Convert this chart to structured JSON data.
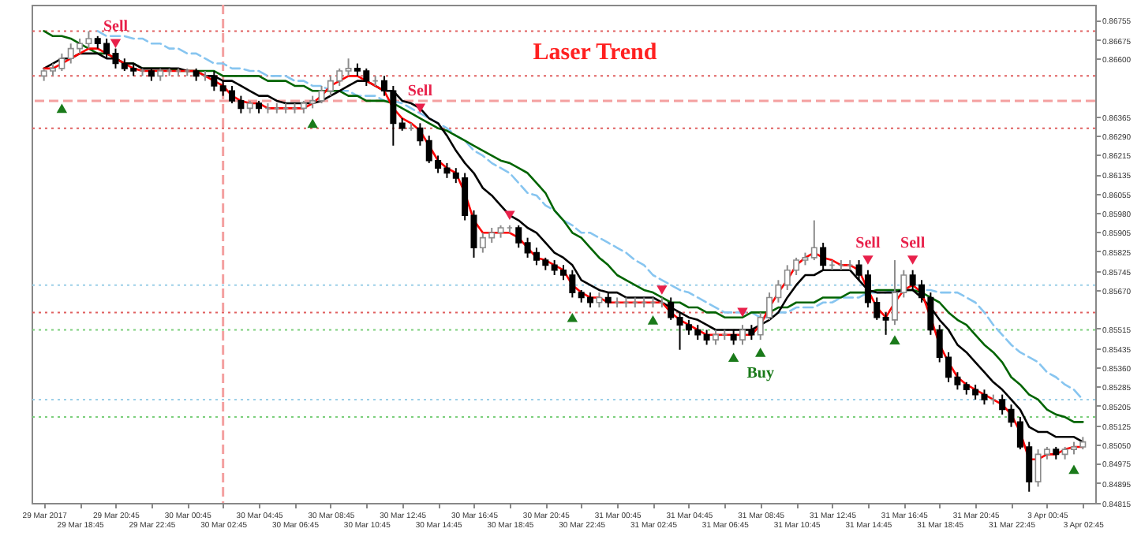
{
  "chart_data": {
    "type": "candlestick",
    "title": "Laser Trend",
    "ylim": [
      0.84815,
      0.86816
    ],
    "yticks": [
      0.86755,
      0.86675,
      {
        "value": 0.866,
        "label": "0.86600"
      },
      0.86365,
      {
        "value": 0.8629,
        "label": "0.86290"
      },
      0.86215,
      0.86135,
      0.86055,
      {
        "value": 0.8598,
        "label": "0.85980"
      },
      0.85905,
      0.85825,
      0.85745,
      {
        "value": 0.8567,
        "label": "0.85670"
      },
      0.85515,
      0.85435,
      {
        "value": 0.8536,
        "label": "0.85360"
      },
      0.85285,
      0.85205,
      0.85125,
      {
        "value": 0.8505,
        "label": "0.85050"
      },
      0.84975,
      0.84895,
      0.84815
    ],
    "categories": [
      "29 Mar 2017",
      null,
      null,
      null,
      "29 Mar 18:45",
      null,
      null,
      null,
      "29 Mar 20:45",
      null,
      null,
      null,
      "29 Mar 22:45",
      null,
      null,
      null,
      "30 Mar 00:45",
      null,
      null,
      null,
      "30 Mar 02:45",
      null,
      null,
      null,
      "30 Mar 04:45",
      null,
      null,
      null,
      "30 Mar 06:45",
      null,
      null,
      null,
      "30 Mar 08:45",
      null,
      null,
      null,
      "30 Mar 10:45",
      null,
      null,
      null,
      "30 Mar 12:45",
      null,
      null,
      null,
      "30 Mar 14:45",
      null,
      null,
      null,
      "30 Mar 16:45",
      null,
      null,
      null,
      "30 Mar 18:45",
      null,
      null,
      null,
      "30 Mar 20:45",
      null,
      null,
      null,
      "30 Mar 22:45",
      null,
      null,
      null,
      "31 Mar 00:45",
      null,
      null,
      null,
      "31 Mar 02:45",
      null,
      null,
      null,
      "31 Mar 04:45",
      null,
      null,
      null,
      "31 Mar 06:45",
      null,
      null,
      null,
      "31 Mar 08:45",
      null,
      null,
      null,
      "31 Mar 10:45",
      null,
      null,
      null,
      "31 Mar 12:45",
      null,
      null,
      null,
      "31 Mar 14:45",
      null,
      null,
      null,
      "31 Mar 16:45",
      null,
      null,
      null,
      "31 Mar 18:45",
      null,
      null,
      null,
      "31 Mar 20:45",
      null,
      null,
      null,
      "31 Mar 22:45",
      null,
      null,
      null,
      "3 Apr 00:45",
      null,
      null,
      null,
      "3 Apr 02:45"
    ],
    "ohlc": [
      [
        0.8653,
        0.8656,
        0.8651,
        0.8655
      ],
      [
        0.8655,
        0.8658,
        0.8653,
        0.8656
      ],
      [
        0.8656,
        0.8662,
        0.8655,
        0.866
      ],
      [
        0.866,
        0.8666,
        0.8658,
        0.8664
      ],
      [
        0.8664,
        0.8668,
        0.8662,
        0.8666
      ],
      [
        0.8666,
        0.8671,
        0.8664,
        0.8668
      ],
      [
        0.8668,
        0.8669,
        0.8664,
        0.8666
      ],
      [
        0.8666,
        0.8668,
        0.866,
        0.8662
      ],
      [
        0.8662,
        0.8664,
        0.8656,
        0.8658
      ],
      [
        0.8658,
        0.866,
        0.8655,
        0.8656
      ],
      [
        0.8656,
        0.8658,
        0.8653,
        0.8655
      ],
      [
        0.8655,
        0.8656,
        0.8653,
        0.8655
      ],
      [
        0.8655,
        0.8656,
        0.8651,
        0.8653
      ],
      [
        0.8653,
        0.8656,
        0.8651,
        0.8655
      ],
      [
        0.8655,
        0.8656,
        0.8653,
        0.8655
      ],
      [
        0.8655,
        0.8656,
        0.8653,
        0.8655
      ],
      [
        0.8655,
        0.8656,
        0.8653,
        0.8655
      ],
      [
        0.8655,
        0.8656,
        0.8651,
        0.8653
      ],
      [
        0.8653,
        0.8655,
        0.8651,
        0.8653
      ],
      [
        0.8653,
        0.8655,
        0.8647,
        0.8649
      ],
      [
        0.8649,
        0.8651,
        0.8645,
        0.8647
      ],
      [
        0.8647,
        0.8649,
        0.8642,
        0.8643
      ],
      [
        0.8643,
        0.8645,
        0.8638,
        0.864
      ],
      [
        0.864,
        0.8643,
        0.8638,
        0.8642
      ],
      [
        0.8642,
        0.8643,
        0.8638,
        0.864
      ],
      [
        0.864,
        0.8642,
        0.8638,
        0.864
      ],
      [
        0.864,
        0.8642,
        0.8638,
        0.864
      ],
      [
        0.864,
        0.8642,
        0.8638,
        0.864
      ],
      [
        0.864,
        0.8642,
        0.8638,
        0.864
      ],
      [
        0.864,
        0.8643,
        0.8638,
        0.8642
      ],
      [
        0.8642,
        0.8645,
        0.864,
        0.8643
      ],
      [
        0.8643,
        0.8649,
        0.8642,
        0.8647
      ],
      [
        0.8647,
        0.8653,
        0.8645,
        0.8651
      ],
      [
        0.8651,
        0.8656,
        0.8649,
        0.8655
      ],
      [
        0.8655,
        0.866,
        0.8653,
        0.8656
      ],
      [
        0.8656,
        0.8658,
        0.8653,
        0.8655
      ],
      [
        0.8655,
        0.8656,
        0.8649,
        0.8651
      ],
      [
        0.8651,
        0.8653,
        0.8649,
        0.8651
      ],
      [
        0.8651,
        0.8653,
        0.8645,
        0.8647
      ],
      [
        0.8647,
        0.8649,
        0.8625,
        0.8634
      ],
      [
        0.8634,
        0.8636,
        0.8631,
        0.8632
      ],
      [
        0.8632,
        0.8634,
        0.8631,
        0.8632
      ],
      [
        0.8632,
        0.8634,
        0.8625,
        0.8627
      ],
      [
        0.8627,
        0.8629,
        0.8618,
        0.8619
      ],
      [
        0.8619,
        0.8621,
        0.8614,
        0.8616
      ],
      [
        0.8616,
        0.8618,
        0.8612,
        0.8614
      ],
      [
        0.8614,
        0.8616,
        0.861,
        0.8612
      ],
      [
        0.8612,
        0.8614,
        0.8595,
        0.8597
      ],
      [
        0.8597,
        0.8599,
        0.858,
        0.8584
      ],
      [
        0.8584,
        0.859,
        0.8582,
        0.8588
      ],
      [
        0.8588,
        0.8592,
        0.8586,
        0.859
      ],
      [
        0.859,
        0.8593,
        0.8588,
        0.8592
      ],
      [
        0.8592,
        0.8593,
        0.859,
        0.8592
      ],
      [
        0.8592,
        0.8593,
        0.8584,
        0.8586
      ],
      [
        0.8586,
        0.8588,
        0.858,
        0.8582
      ],
      [
        0.8582,
        0.8584,
        0.8577,
        0.8579
      ],
      [
        0.8579,
        0.858,
        0.8575,
        0.8577
      ],
      [
        0.8577,
        0.8579,
        0.8573,
        0.8575
      ],
      [
        0.8575,
        0.8577,
        0.8571,
        0.8573
      ],
      [
        0.8573,
        0.8575,
        0.8564,
        0.8566
      ],
      [
        0.8566,
        0.8567,
        0.8562,
        0.8564
      ],
      [
        0.8564,
        0.8566,
        0.856,
        0.8562
      ],
      [
        0.8562,
        0.8566,
        0.856,
        0.8564
      ],
      [
        0.8564,
        0.8566,
        0.856,
        0.8562
      ],
      [
        0.8562,
        0.8564,
        0.856,
        0.8562
      ],
      [
        0.8562,
        0.8564,
        0.856,
        0.8562
      ],
      [
        0.8562,
        0.8564,
        0.856,
        0.8562
      ],
      [
        0.8562,
        0.8564,
        0.856,
        0.8562
      ],
      [
        0.8562,
        0.8564,
        0.856,
        0.8562
      ],
      [
        0.8562,
        0.8564,
        0.856,
        0.8562
      ],
      [
        0.8562,
        0.8564,
        0.8555,
        0.8556
      ],
      [
        0.8556,
        0.8558,
        0.8543,
        0.8553
      ],
      [
        0.8553,
        0.8555,
        0.8549,
        0.8551
      ],
      [
        0.8551,
        0.8553,
        0.8547,
        0.8549
      ],
      [
        0.8549,
        0.8551,
        0.8545,
        0.8547
      ],
      [
        0.8547,
        0.8551,
        0.8545,
        0.8549
      ],
      [
        0.8549,
        0.8551,
        0.8547,
        0.8549
      ],
      [
        0.8549,
        0.8551,
        0.8545,
        0.8547
      ],
      [
        0.8547,
        0.8553,
        0.8545,
        0.8551
      ],
      [
        0.8551,
        0.8553,
        0.8547,
        0.8549
      ],
      [
        0.8549,
        0.8558,
        0.8547,
        0.8556
      ],
      [
        0.8556,
        0.8566,
        0.8555,
        0.8564
      ],
      [
        0.8564,
        0.8571,
        0.8562,
        0.8569
      ],
      [
        0.8569,
        0.8577,
        0.8567,
        0.8575
      ],
      [
        0.8575,
        0.858,
        0.8573,
        0.8579
      ],
      [
        0.8579,
        0.8582,
        0.8577,
        0.858
      ],
      [
        0.858,
        0.8595,
        0.8579,
        0.8584
      ],
      [
        0.8584,
        0.8586,
        0.8575,
        0.8577
      ],
      [
        0.8577,
        0.8579,
        0.8575,
        0.8577
      ],
      [
        0.8577,
        0.8579,
        0.8575,
        0.8577
      ],
      [
        0.8577,
        0.8579,
        0.8575,
        0.8577
      ],
      [
        0.8577,
        0.8579,
        0.8571,
        0.8573
      ],
      [
        0.8573,
        0.8575,
        0.856,
        0.8562
      ],
      [
        0.8562,
        0.8564,
        0.8555,
        0.8556
      ],
      [
        0.8556,
        0.8558,
        0.8549,
        0.8555
      ],
      [
        0.8555,
        0.8579,
        0.8553,
        0.8566
      ],
      [
        0.8566,
        0.8575,
        0.8564,
        0.8573
      ],
      [
        0.8573,
        0.8575,
        0.8567,
        0.8569
      ],
      [
        0.8569,
        0.8571,
        0.8562,
        0.8564
      ],
      [
        0.8564,
        0.8566,
        0.8549,
        0.8551
      ],
      [
        0.8551,
        0.8553,
        0.8538,
        0.854
      ],
      [
        0.854,
        0.8542,
        0.853,
        0.8532
      ],
      [
        0.8532,
        0.8534,
        0.8527,
        0.8529
      ],
      [
        0.8529,
        0.853,
        0.8525,
        0.8527
      ],
      [
        0.8527,
        0.8529,
        0.8523,
        0.8525
      ],
      [
        0.8525,
        0.8527,
        0.8521,
        0.8523
      ],
      [
        0.8523,
        0.8525,
        0.8521,
        0.8523
      ],
      [
        0.8523,
        0.8525,
        0.8517,
        0.8519
      ],
      [
        0.8519,
        0.8521,
        0.8512,
        0.8514
      ],
      [
        0.8514,
        0.8516,
        0.8503,
        0.8504
      ],
      [
        0.8504,
        0.8506,
        0.8486,
        0.849
      ],
      [
        0.849,
        0.8503,
        0.8488,
        0.8501
      ],
      [
        0.8501,
        0.8504,
        0.8499,
        0.8503
      ],
      [
        0.8503,
        0.8504,
        0.8499,
        0.8501
      ],
      [
        0.8501,
        0.8504,
        0.8499,
        0.8503
      ],
      [
        0.8503,
        0.8506,
        0.8501,
        0.8504
      ],
      [
        0.8504,
        0.8508,
        0.8503,
        0.8506
      ]
    ],
    "series": [
      {
        "type": "line",
        "color": "#87c5f0",
        "line_style": "dashed",
        "values": [
          null,
          null,
          null,
          null,
          null,
          null,
          0.8671,
          0.8669,
          0.8669,
          0.8669,
          0.8668,
          0.8668,
          0.8666,
          0.8666,
          0.8664,
          0.8664,
          0.8662,
          0.8662,
          0.866,
          0.8658,
          0.8658,
          0.8656,
          0.8656,
          0.8655,
          0.8655,
          0.8653,
          0.8653,
          0.8653,
          0.8651,
          0.8651,
          0.8649,
          0.8649,
          0.8647,
          0.8647,
          0.8647,
          0.8645,
          0.8645,
          0.8645,
          0.8643,
          0.8643,
          0.8642,
          0.864,
          0.8638,
          0.8636,
          0.8634,
          0.8632,
          0.8629,
          0.8627,
          0.8623,
          0.8621,
          0.8618,
          0.8616,
          0.8614,
          0.861,
          0.8606,
          0.8605,
          0.8601,
          0.8599,
          0.8595,
          0.8593,
          0.859,
          0.859,
          0.8588,
          0.8586,
          0.8584,
          0.8582,
          0.8579,
          0.8577,
          0.8573,
          0.8571,
          0.8569,
          0.8567,
          0.8566,
          0.8564,
          0.8562,
          0.856,
          0.8558,
          0.8558,
          0.8558,
          0.8558,
          0.8556,
          0.8556,
          0.8558,
          0.8558,
          0.856,
          0.856,
          0.856,
          0.8562,
          0.8562,
          0.8564,
          0.8564,
          0.8564,
          0.8566,
          0.8566,
          0.8566,
          0.8567,
          0.8567,
          0.8567,
          0.8567,
          0.8567,
          0.8566,
          0.8566,
          0.8566,
          0.8564,
          0.8562,
          0.8558,
          0.8553,
          0.8549,
          0.8545,
          0.8542,
          0.854,
          0.8538,
          0.8534,
          0.8532,
          0.8529,
          0.8527,
          0.8523
        ]
      },
      {
        "type": "line",
        "color": "#006400",
        "values": [
          0.8671,
          0.8669,
          0.8669,
          0.8668,
          0.8666,
          0.8664,
          0.8662,
          0.8662,
          0.866,
          0.8658,
          0.8658,
          0.8656,
          0.8656,
          0.8656,
          0.8656,
          0.8655,
          0.8655,
          0.8655,
          0.8655,
          0.8655,
          0.8653,
          0.8653,
          0.8653,
          0.8653,
          0.8653,
          0.8651,
          0.8651,
          0.8651,
          0.8649,
          0.8649,
          0.8647,
          0.8647,
          0.8647,
          0.8647,
          0.8645,
          0.8645,
          0.8643,
          0.8643,
          0.8643,
          0.8642,
          0.864,
          0.8638,
          0.8636,
          0.8634,
          0.8632,
          0.8631,
          0.8629,
          0.8627,
          0.8625,
          0.8623,
          0.8621,
          0.8619,
          0.8618,
          0.8616,
          0.8614,
          0.861,
          0.8606,
          0.8599,
          0.8595,
          0.859,
          0.8588,
          0.8584,
          0.858,
          0.8577,
          0.8573,
          0.8571,
          0.8569,
          0.8567,
          0.8566,
          0.8564,
          0.8562,
          0.8562,
          0.856,
          0.856,
          0.8558,
          0.8558,
          0.8556,
          0.8556,
          0.8556,
          0.8558,
          0.8558,
          0.8558,
          0.856,
          0.856,
          0.8562,
          0.8562,
          0.8562,
          0.8564,
          0.8564,
          0.8564,
          0.8566,
          0.8566,
          0.8566,
          0.8567,
          0.8567,
          0.8567,
          0.8567,
          0.8567,
          0.8566,
          0.8564,
          0.8562,
          0.8558,
          0.8555,
          0.8553,
          0.8549,
          0.8545,
          0.8542,
          0.8538,
          0.8532,
          0.8529,
          0.8525,
          0.8523,
          0.8519,
          0.8517,
          0.8516,
          0.8514,
          0.8514
        ]
      },
      {
        "type": "line",
        "color": "#000000",
        "values": [
          0.8656,
          0.8658,
          0.866,
          0.866,
          0.8662,
          0.8662,
          0.8662,
          0.866,
          0.866,
          0.8658,
          0.8658,
          0.8656,
          0.8656,
          0.8656,
          0.8656,
          0.8656,
          0.8655,
          0.8655,
          0.8653,
          0.8653,
          0.8651,
          0.8651,
          0.8649,
          0.8647,
          0.8645,
          0.8645,
          0.8643,
          0.8642,
          0.8642,
          0.8642,
          0.8642,
          0.8643,
          0.8645,
          0.8647,
          0.8649,
          0.8651,
          0.8651,
          0.8649,
          0.8647,
          0.8647,
          0.8643,
          0.8642,
          0.864,
          0.8636,
          0.8634,
          0.8629,
          0.8623,
          0.8618,
          0.8614,
          0.8608,
          0.8605,
          0.8601,
          0.8597,
          0.8595,
          0.8592,
          0.859,
          0.8586,
          0.8582,
          0.858,
          0.8577,
          0.8571,
          0.8569,
          0.8567,
          0.8566,
          0.8566,
          0.8564,
          0.8564,
          0.8564,
          0.8564,
          0.8562,
          0.856,
          0.8558,
          0.8556,
          0.8555,
          0.8553,
          0.8551,
          0.8551,
          0.8551,
          0.8551,
          0.8551,
          0.8553,
          0.8555,
          0.8558,
          0.8564,
          0.8569,
          0.8573,
          0.8573,
          0.8575,
          0.8575,
          0.8575,
          0.8575,
          0.8571,
          0.8567,
          0.8566,
          0.8566,
          0.8566,
          0.8567,
          0.8567,
          0.8564,
          0.856,
          0.8555,
          0.8551,
          0.8545,
          0.8542,
          0.8538,
          0.8534,
          0.853,
          0.8527,
          0.8523,
          0.8519,
          0.8512,
          0.851,
          0.851,
          0.8508,
          0.8508,
          0.8508,
          0.8506
        ]
      },
      {
        "type": "line",
        "color": "#ff0000",
        "values": [
          0.8656,
          0.8656,
          0.8658,
          0.866,
          0.8662,
          0.8664,
          0.8664,
          0.8662,
          0.866,
          0.8658,
          0.8656,
          0.8655,
          0.8655,
          0.8655,
          0.8655,
          0.8655,
          0.8655,
          0.8655,
          0.8653,
          0.8651,
          0.8649,
          0.8645,
          0.8643,
          0.8642,
          0.8642,
          0.864,
          0.864,
          0.864,
          0.864,
          0.864,
          0.8642,
          0.8645,
          0.8649,
          0.8651,
          0.8653,
          0.8653,
          0.8651,
          0.8649,
          0.8647,
          0.864,
          0.8636,
          0.8634,
          0.8631,
          0.8625,
          0.8619,
          0.8616,
          0.8614,
          0.8606,
          0.8595,
          0.859,
          0.859,
          0.859,
          0.859,
          0.8588,
          0.8584,
          0.858,
          0.8579,
          0.8577,
          0.8575,
          0.8569,
          0.8566,
          0.8564,
          0.8564,
          0.8562,
          0.8562,
          0.8562,
          0.8562,
          0.8562,
          0.8562,
          0.8562,
          0.8558,
          0.8555,
          0.8553,
          0.8551,
          0.8549,
          0.8549,
          0.8549,
          0.8549,
          0.8549,
          0.8549,
          0.8553,
          0.856,
          0.8566,
          0.8571,
          0.8577,
          0.858,
          0.8582,
          0.858,
          0.8579,
          0.8577,
          0.8577,
          0.8575,
          0.8567,
          0.856,
          0.8556,
          0.8562,
          0.8567,
          0.8569,
          0.8566,
          0.8556,
          0.8545,
          0.8538,
          0.8532,
          0.8529,
          0.8527,
          0.8525,
          0.8523,
          0.8521,
          0.8517,
          0.851,
          0.8499,
          0.8499,
          0.8501,
          0.8501,
          0.8503,
          0.8504,
          0.8504
        ]
      },
      {
        "type": "scatter",
        "color": "#e8204a",
        "marker": "triangle",
        "values": [
          null,
          null,
          null,
          null,
          null,
          null,
          null,
          null,
          0.8666,
          null,
          null,
          null,
          null,
          null,
          null,
          null,
          null,
          null,
          null,
          null,
          null,
          null,
          null,
          null,
          null,
          null,
          null,
          null,
          null,
          null,
          null,
          null,
          null,
          null,
          null,
          null,
          null,
          null,
          null,
          null,
          null,
          null,
          0.864,
          null,
          null,
          null,
          null,
          null,
          null,
          null,
          null,
          null,
          0.8597,
          null,
          null,
          null,
          null,
          null,
          null,
          null,
          null,
          null,
          null,
          null,
          null,
          null,
          null,
          null,
          null,
          0.8567,
          null,
          null,
          null,
          null,
          null,
          null,
          null,
          null,
          0.8558,
          null,
          null,
          null,
          null,
          null,
          null,
          null,
          null,
          null,
          null,
          null,
          null,
          null,
          0.8579,
          null,
          null,
          null,
          null,
          0.8579,
          null,
          null,
          null,
          null,
          null,
          null,
          null,
          null,
          null,
          null,
          null,
          null,
          null,
          null,
          null,
          null,
          null,
          null,
          null
        ],
        "value_labels": [
          null,
          null,
          null,
          null,
          null,
          null,
          null,
          null,
          "Sell",
          null,
          null,
          null,
          null,
          null,
          null,
          null,
          null,
          null,
          null,
          null,
          null,
          null,
          null,
          null,
          null,
          null,
          null,
          null,
          null,
          null,
          null,
          null,
          null,
          null,
          null,
          null,
          null,
          null,
          null,
          null,
          null,
          null,
          "Sell",
          null,
          null,
          null,
          null,
          null,
          null,
          null,
          null,
          null,
          null,
          null,
          null,
          null,
          null,
          null,
          null,
          null,
          null,
          null,
          null,
          null,
          null,
          null,
          null,
          null,
          null,
          null,
          null,
          null,
          null,
          null,
          null,
          null,
          null,
          null,
          null,
          null,
          null,
          null,
          null,
          null,
          null,
          null,
          null,
          null,
          null,
          null,
          null,
          null,
          "Sell",
          null,
          null,
          null,
          null,
          "Sell",
          null,
          null,
          null,
          null,
          null,
          null,
          null,
          null,
          null,
          null,
          null,
          null,
          null,
          null,
          null,
          null,
          null,
          null,
          null
        ]
      },
      {
        "type": "scatter",
        "color": "#1a7a1a",
        "marker": "triangle",
        "values": [
          null,
          null,
          0.864,
          null,
          null,
          null,
          null,
          null,
          null,
          null,
          null,
          null,
          null,
          null,
          null,
          null,
          null,
          null,
          null,
          null,
          null,
          null,
          null,
          null,
          null,
          null,
          null,
          null,
          null,
          null,
          0.8634,
          null,
          null,
          null,
          null,
          null,
          null,
          null,
          null,
          null,
          null,
          null,
          null,
          null,
          null,
          null,
          null,
          null,
          null,
          null,
          null,
          null,
          null,
          null,
          null,
          null,
          null,
          null,
          null,
          0.8556,
          null,
          null,
          null,
          null,
          null,
          null,
          null,
          null,
          0.8555,
          null,
          null,
          null,
          null,
          null,
          null,
          null,
          null,
          0.854,
          null,
          null,
          0.8542,
          null,
          null,
          null,
          null,
          null,
          null,
          null,
          null,
          null,
          null,
          null,
          null,
          null,
          null,
          0.8547,
          null,
          null,
          null,
          null,
          null,
          null,
          null,
          null,
          null,
          null,
          null,
          null,
          null,
          null,
          null,
          null,
          null,
          null,
          null,
          0.8495,
          null
        ],
        "value_labels": [
          null,
          null,
          null,
          null,
          null,
          null,
          null,
          null,
          null,
          null,
          null,
          null,
          null,
          null,
          null,
          null,
          null,
          null,
          null,
          null,
          null,
          null,
          null,
          null,
          null,
          null,
          null,
          null,
          null,
          null,
          null,
          null,
          null,
          null,
          null,
          null,
          null,
          null,
          null,
          null,
          null,
          null,
          null,
          null,
          null,
          null,
          null,
          null,
          null,
          null,
          null,
          null,
          null,
          null,
          null,
          null,
          null,
          null,
          null,
          null,
          null,
          null,
          null,
          null,
          null,
          null,
          null,
          null,
          null,
          null,
          null,
          null,
          null,
          null,
          null,
          null,
          null,
          null,
          null,
          null,
          "Buy",
          null,
          null,
          null,
          null,
          null,
          null,
          null,
          null,
          null,
          null,
          null,
          null,
          null,
          null,
          null,
          null,
          null,
          null,
          null,
          null,
          null,
          null,
          null,
          null,
          null,
          null,
          null,
          null,
          null,
          null,
          null,
          null,
          null,
          null,
          null,
          null
        ]
      }
    ],
    "ref_lines": [
      {
        "axis": "y",
        "value": 0.8671,
        "color": "#e06060",
        "line_style": "dotted"
      },
      {
        "axis": "y",
        "value": 0.8653,
        "color": "#e06060",
        "line_style": "dotted"
      },
      {
        "axis": "y",
        "value": 0.8643,
        "color": "#f4a0a0",
        "line_style": "dashed"
      },
      {
        "axis": "y",
        "value": 0.8632,
        "color": "#e06060",
        "line_style": "dotted"
      },
      {
        "axis": "y",
        "value": 0.8569,
        "color": "#9ccfe8",
        "line_style": "dotted"
      },
      {
        "axis": "y",
        "value": 0.8558,
        "color": "#e06060",
        "line_style": "dotted"
      },
      {
        "axis": "y",
        "value": 0.8551,
        "color": "#7ccf7c",
        "line_style": "dotted"
      },
      {
        "axis": "y",
        "value": 0.8523,
        "color": "#9ccfe8",
        "line_style": "dotted"
      },
      {
        "axis": "y",
        "value": 0.8516,
        "color": "#7ccf7c",
        "line_style": "dotted"
      },
      {
        "axis": "x",
        "value": "30 Mar 02:45",
        "color": "#f4a0a0",
        "line_style": "dashed"
      }
    ]
  }
}
